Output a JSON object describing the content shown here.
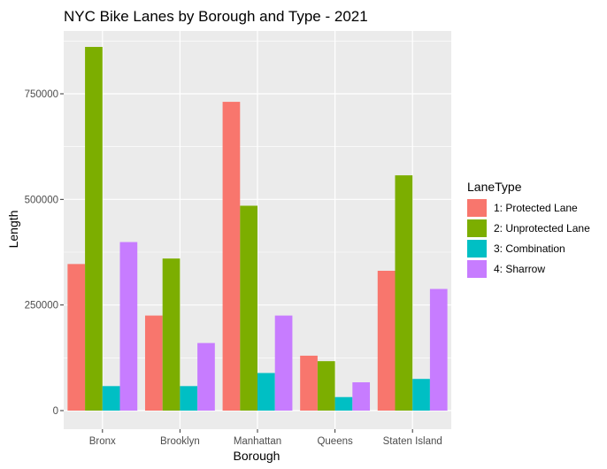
{
  "chart_data": {
    "type": "bar",
    "title": "NYC Bike Lanes by Borough and Type - 2021",
    "xlabel": "Borough",
    "ylabel": "Length",
    "categories": [
      "Bronx",
      "Brooklyn",
      "Manhattan",
      "Queens",
      "Staten Island"
    ],
    "series": [
      {
        "name": "1: Protected Lane",
        "color": "#F8766D",
        "values": [
          347000,
          225000,
          731000,
          130000,
          331000
        ]
      },
      {
        "name": "2: Unprotected Lane",
        "color": "#7CAE00",
        "values": [
          861000,
          360000,
          485000,
          117000,
          557000
        ]
      },
      {
        "name": "3: Combination",
        "color": "#00BFC4",
        "values": [
          58000,
          58000,
          89000,
          32000,
          75000
        ]
      },
      {
        "name": "4: Sharrow",
        "color": "#C77CFF",
        "values": [
          399000,
          160000,
          225000,
          67000,
          288000
        ]
      }
    ],
    "ylim": [
      0,
      900000
    ],
    "yticks": [
      0,
      250000,
      500000,
      750000
    ],
    "ytick_labels": [
      "0",
      "250000",
      "500000",
      "750000"
    ],
    "grid": true,
    "legend_title": "LaneType",
    "legend_position": "right",
    "panel_background": "#EBEBEB"
  }
}
